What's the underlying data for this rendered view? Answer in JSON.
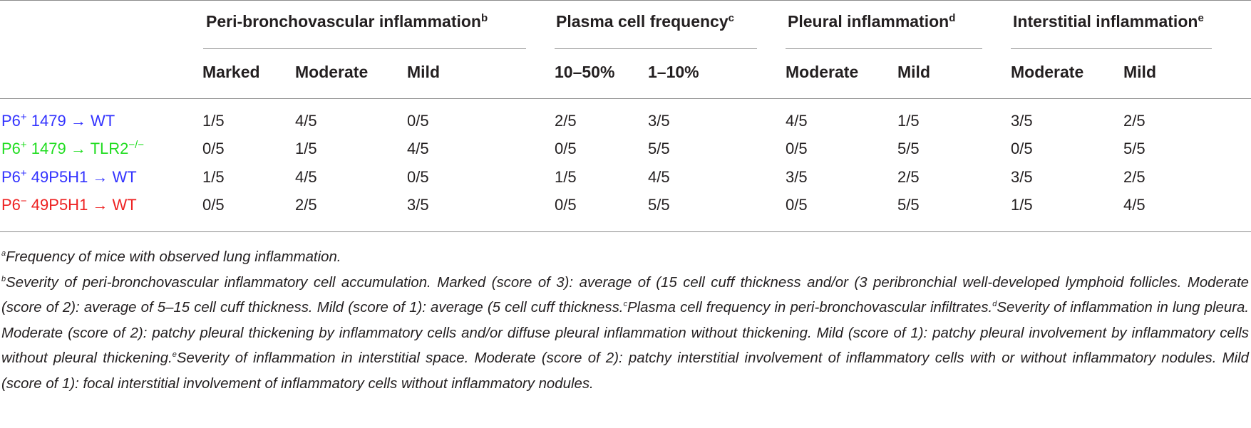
{
  "colors": {
    "blue_row": "#3333ff",
    "green_row": "#22dd22",
    "red_row": "#ee2222",
    "rule": "#8c8c8c",
    "text": "#231f20"
  },
  "groups": [
    {
      "label": "Peri-bronchovascular inflammation",
      "sup": "b"
    },
    {
      "label": "Plasma cell frequency",
      "sup": "c"
    },
    {
      "label": "Pleural inflammation",
      "sup": "d"
    },
    {
      "label": "Interstitial inflammation",
      "sup": "e"
    }
  ],
  "subheaders": [
    "Marked",
    "Moderate",
    "Mild",
    "10–50%",
    "1–10%",
    "Moderate",
    "Mild",
    "Moderate",
    "Mild"
  ],
  "rows": [
    {
      "pre": "P6",
      "sup": "+",
      "post": " 1479 → WT",
      "color": "blue",
      "values": [
        "1/5",
        "4/5",
        "0/5",
        "2/5",
        "3/5",
        "4/5",
        "1/5",
        "3/5",
        "2/5"
      ]
    },
    {
      "pre": "P6",
      "sup": "+",
      "post": " 1479 → TLR2",
      "post_sup": "−/−",
      "color": "green",
      "values": [
        "0/5",
        "1/5",
        "4/5",
        "0/5",
        "5/5",
        "0/5",
        "5/5",
        "0/5",
        "5/5"
      ]
    },
    {
      "pre": "P6",
      "sup": "+",
      "post": " 49P5H1 → WT",
      "color": "blue",
      "values": [
        "1/5",
        "4/5",
        "0/5",
        "1/5",
        "4/5",
        "3/5",
        "2/5",
        "3/5",
        "2/5"
      ]
    },
    {
      "pre": "P6",
      "sup": "−",
      "post": " 49P5H1 → WT",
      "color": "red",
      "values": [
        "0/5",
        "2/5",
        "3/5",
        "0/5",
        "5/5",
        "0/5",
        "5/5",
        "1/5",
        "4/5"
      ]
    }
  ],
  "footnotes": {
    "a": {
      "mark": "a",
      "text": "Frequency of mice with observed lung inflammation."
    },
    "b": {
      "mark": "b",
      "text": "Severity of peri-bronchovascular inflammatory cell accumulation. Marked (score of 3): average of (15 cell cuff thickness and/or (3 peribronchial well-developed lymphoid follicles. Moderate (score of 2): average of 5–15 cell cuff thickness. Mild (score of 1): average (5 cell cuff thickness."
    },
    "c": {
      "mark": "c",
      "text": "Plasma cell frequency in peri-bronchovascular infiltrates."
    },
    "d": {
      "mark": "d",
      "text": "Severity of inflammation in lung pleura. Moderate (score of 2): patchy pleural thickening by inflammatory cells and/or diffuse pleural inflammation without thickening. Mild (score of 1): patchy pleural involvement by inflammatory cells without pleural thickening."
    },
    "e": {
      "mark": "e",
      "text": "Severity of inflammation in interstitial space. Moderate (score of 2): patchy interstitial involvement of inflammatory cells with or without inflammatory nodules. Mild (score of 1): focal interstitial involvement of inflammatory cells without inflammatory nodules."
    }
  }
}
